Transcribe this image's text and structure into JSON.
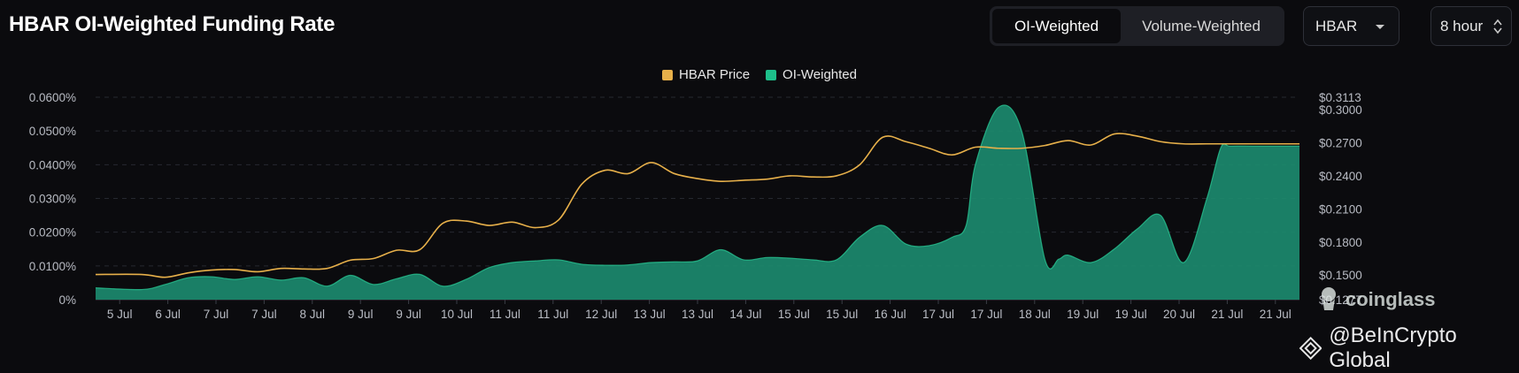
{
  "header": {
    "title": "HBAR OI-Weighted Funding Rate",
    "tabs": [
      {
        "label": "OI-Weighted",
        "active": true
      },
      {
        "label": "Volume-Weighted",
        "active": false
      }
    ],
    "coin_select": "HBAR",
    "interval_select": "8 hour"
  },
  "legend": [
    {
      "label": "HBAR Price",
      "color": "#e7b04a"
    },
    {
      "label": "OI-Weighted",
      "color": "#1dbf8a"
    }
  ],
  "watermarks": {
    "coinglass": "coinglass",
    "beincrypto": "@BeInCrypto Global"
  },
  "chart_data": {
    "type": "area",
    "x": [
      "5 Jul",
      "6 Jul",
      "7 Jul",
      "7 Jul",
      "8 Jul",
      "9 Jul",
      "9 Jul",
      "10 Jul",
      "11 Jul",
      "11 Jul",
      "12 Jul",
      "13 Jul",
      "13 Jul",
      "14 Jul",
      "15 Jul",
      "15 Jul",
      "16 Jul",
      "17 Jul",
      "17 Jul",
      "18 Jul",
      "19 Jul",
      "19 Jul",
      "20 Jul",
      "21 Jul",
      "21 Jul"
    ],
    "y_left": {
      "ticks": [
        "0%",
        "0.0100%",
        "0.0200%",
        "0.0300%",
        "0.0400%",
        "0.0500%",
        "0.0600%"
      ],
      "lim": [
        0,
        0.06
      ],
      "unit": "%"
    },
    "y_right": {
      "ticks": [
        "$0.1277",
        "$0.1500",
        "$0.1800",
        "$0.2100",
        "$0.2400",
        "$0.2700",
        "$0.3000",
        "$0.3113"
      ],
      "lim": [
        0.1277,
        0.3113
      ]
    },
    "grid": true,
    "series": [
      {
        "name": "OI-Weighted",
        "type": "area",
        "axis": "left",
        "color": "#1dbf8a",
        "x": [
          0,
          1,
          1.5,
          2,
          2.5,
          3,
          3.5,
          4,
          4.5,
          5,
          5.5,
          6,
          6.5,
          7,
          7.5,
          8,
          8.5,
          9,
          9.5,
          10,
          10.5,
          11,
          11.5,
          12,
          12.5,
          13,
          13.5,
          14,
          14.5,
          15,
          15.5,
          16,
          16.5,
          17,
          17.5,
          18,
          18.5,
          18.8,
          19,
          19.5,
          20,
          20.5,
          20.8,
          21,
          21.5,
          22,
          22.5,
          23,
          23.5,
          24,
          24.3,
          24.5,
          25,
          25.5,
          26
        ],
        "values": [
          0.0035,
          0.003,
          0.0045,
          0.0065,
          0.0068,
          0.006,
          0.0068,
          0.0058,
          0.0065,
          0.004,
          0.0072,
          0.0045,
          0.0062,
          0.0075,
          0.004,
          0.006,
          0.0095,
          0.011,
          0.0115,
          0.0118,
          0.0105,
          0.0102,
          0.0103,
          0.011,
          0.0112,
          0.0115,
          0.0148,
          0.0118,
          0.0125,
          0.0123,
          0.0118,
          0.0118,
          0.0185,
          0.022,
          0.0165,
          0.016,
          0.0185,
          0.022,
          0.04,
          0.057,
          0.05,
          0.012,
          0.012,
          0.0132,
          0.011,
          0.015,
          0.021,
          0.025,
          0.011,
          0.03,
          0.045,
          0.0455,
          0.0455,
          0.0455,
          0.0455
        ]
      },
      {
        "name": "HBAR Price",
        "type": "line",
        "axis": "right",
        "color": "#e7b04a",
        "x": [
          0,
          1,
          1.5,
          2,
          2.5,
          3,
          3.5,
          4,
          4.5,
          5,
          5.5,
          6,
          6.5,
          7,
          7.5,
          8,
          8.5,
          9,
          9.5,
          10,
          10.5,
          11,
          11.5,
          12,
          12.5,
          13,
          13.5,
          14,
          14.5,
          15,
          15.5,
          16,
          16.5,
          17,
          17.5,
          18,
          18.5,
          19,
          19.5,
          20,
          20.5,
          21,
          21.5,
          22,
          22.5,
          23,
          23.5,
          24,
          24.5,
          25,
          25.5,
          26
        ],
        "values": [
          0.1505,
          0.1505,
          0.148,
          0.152,
          0.1545,
          0.155,
          0.153,
          0.156,
          0.1555,
          0.156,
          0.1635,
          0.165,
          0.1725,
          0.173,
          0.197,
          0.199,
          0.195,
          0.198,
          0.193,
          0.2,
          0.2325,
          0.245,
          0.242,
          0.252,
          0.242,
          0.2375,
          0.235,
          0.236,
          0.237,
          0.24,
          0.239,
          0.24,
          0.25,
          0.275,
          0.271,
          0.265,
          0.259,
          0.266,
          0.265,
          0.265,
          0.2675,
          0.272,
          0.268,
          0.278,
          0.276,
          0.271,
          0.269,
          0.269,
          0.269,
          0.269,
          0.269,
          0.269
        ]
      }
    ]
  }
}
